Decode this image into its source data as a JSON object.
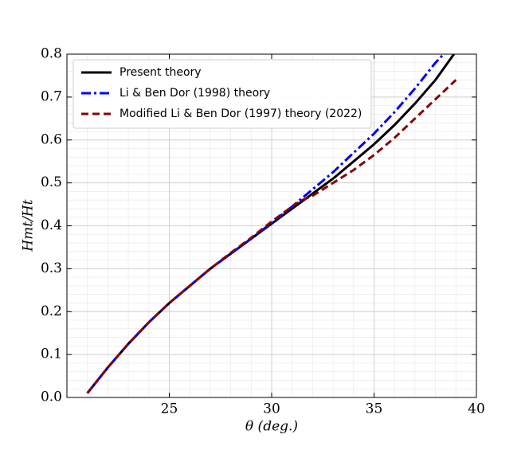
{
  "chart_data": {
    "type": "line",
    "xlabel": "θ (deg.)",
    "ylabel": "Hmt/Ht",
    "xlim": [
      20,
      40
    ],
    "xticks": [
      25,
      30,
      35,
      40
    ],
    "ylim": [
      0,
      0.8
    ],
    "yticks": [
      {
        "value": 0,
        "label": "0.0"
      },
      0.1,
      0.2,
      0.3,
      0.4,
      0.5,
      0.6,
      0.7,
      0.8
    ],
    "grid": true,
    "minor_grid": true,
    "legend": "upper left",
    "series": [
      {
        "name": "Present theory",
        "color": "#000000",
        "style": "solid",
        "x": [
          21,
          22,
          23,
          24,
          25,
          26,
          27,
          28,
          29,
          30,
          31,
          32,
          33,
          34,
          35,
          36,
          37,
          38,
          38.9
        ],
        "values": [
          0.01,
          0.07,
          0.125,
          0.175,
          0.22,
          0.26,
          0.3,
          0.335,
          0.37,
          0.405,
          0.44,
          0.475,
          0.51,
          0.55,
          0.59,
          0.635,
          0.685,
          0.74,
          0.8
        ]
      },
      {
        "name": "Li & Ben Dor (1998) theory",
        "color": "#0000ff",
        "style": "dashdot",
        "x": [
          21,
          22,
          23,
          24,
          25,
          26,
          27,
          28,
          29,
          30,
          31,
          32,
          33,
          34,
          35,
          36,
          37,
          38,
          38.4
        ],
        "values": [
          0.01,
          0.07,
          0.125,
          0.175,
          0.22,
          0.26,
          0.3,
          0.335,
          0.37,
          0.407,
          0.445,
          0.485,
          0.525,
          0.57,
          0.615,
          0.665,
          0.72,
          0.78,
          0.8
        ]
      },
      {
        "name": "Modified Li & Ben Dor (1997) theory (2022)",
        "color": "#8b0000",
        "style": "dashed",
        "x": [
          21,
          22,
          23,
          24,
          25,
          26,
          27,
          28,
          29,
          30,
          31,
          31.5,
          32,
          33,
          34,
          35,
          36,
          37,
          38,
          39
        ],
        "values": [
          0.01,
          0.07,
          0.125,
          0.175,
          0.22,
          0.26,
          0.3,
          0.337,
          0.372,
          0.41,
          0.445,
          0.46,
          0.47,
          0.5,
          0.53,
          0.565,
          0.605,
          0.65,
          0.695,
          0.74
        ]
      }
    ]
  }
}
